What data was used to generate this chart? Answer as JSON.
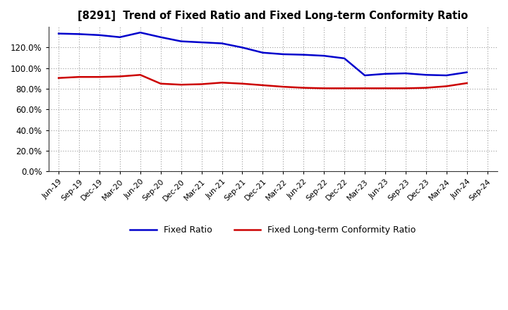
{
  "title": "[8291]  Trend of Fixed Ratio and Fixed Long-term Conformity Ratio",
  "x_labels": [
    "Jun-19",
    "Sep-19",
    "Dec-19",
    "Mar-20",
    "Jun-20",
    "Sep-20",
    "Dec-20",
    "Mar-21",
    "Jun-21",
    "Sep-21",
    "Dec-21",
    "Mar-22",
    "Jun-22",
    "Sep-22",
    "Dec-22",
    "Mar-23",
    "Jun-23",
    "Sep-23",
    "Dec-23",
    "Mar-24",
    "Jun-24",
    "Sep-24"
  ],
  "fixed_ratio": [
    133.5,
    133.0,
    132.0,
    130.0,
    134.5,
    130.0,
    126.0,
    125.0,
    124.0,
    120.0,
    115.0,
    113.5,
    113.0,
    112.0,
    109.5,
    93.0,
    94.5,
    95.0,
    93.5,
    93.0,
    96.0,
    null
  ],
  "fixed_lt_ratio": [
    90.5,
    91.5,
    91.5,
    92.0,
    93.5,
    85.0,
    84.0,
    84.5,
    86.0,
    85.0,
    83.5,
    82.0,
    81.0,
    80.5,
    80.5,
    80.5,
    80.5,
    80.5,
    81.0,
    82.5,
    85.5,
    null
  ],
  "ylim": [
    0,
    140
  ],
  "yticks": [
    0,
    20,
    40,
    60,
    80,
    100,
    120
  ],
  "fixed_ratio_color": "#0000cc",
  "fixed_lt_ratio_color": "#cc0000",
  "background_color": "#ffffff",
  "grid_color": "#999999",
  "legend_fixed_ratio": "Fixed Ratio",
  "legend_fixed_lt_ratio": "Fixed Long-term Conformity Ratio"
}
